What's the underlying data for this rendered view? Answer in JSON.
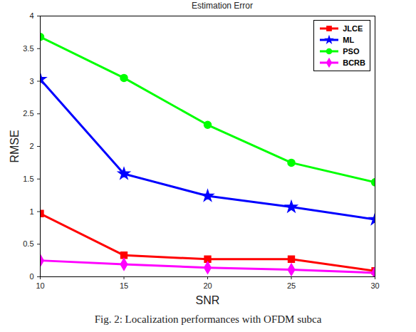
{
  "chart_data": {
    "type": "line",
    "title": "Estimation Error",
    "x_label": "SNR",
    "y_label": "RMSE",
    "caption": "Fig. 2: Localization performances with OFDM subca",
    "x": [
      10,
      15,
      20,
      25,
      30
    ],
    "series": [
      {
        "name": "JLCE",
        "color": "#ff0000",
        "marker": "square",
        "values": [
          0.97,
          0.33,
          0.27,
          0.27,
          0.09
        ]
      },
      {
        "name": "ML",
        "color": "#0000ff",
        "marker": "star",
        "values": [
          3.03,
          1.58,
          1.24,
          1.07,
          0.88
        ]
      },
      {
        "name": "PSO",
        "color": "#00ff00",
        "marker": "circle",
        "values": [
          3.68,
          3.05,
          2.33,
          1.75,
          1.45
        ]
      },
      {
        "name": "BCRB",
        "color": "#ff00ff",
        "marker": "diamond",
        "values": [
          0.25,
          0.19,
          0.14,
          0.11,
          0.06
        ]
      }
    ],
    "xlim": [
      10,
      30
    ],
    "xticks": [
      10,
      15,
      20,
      25,
      30
    ],
    "ylim": [
      0,
      4
    ],
    "yticks": [
      0,
      0.5,
      1,
      1.5,
      2,
      2.5,
      3,
      3.5,
      4
    ],
    "grid": false,
    "legend": "top-right"
  }
}
